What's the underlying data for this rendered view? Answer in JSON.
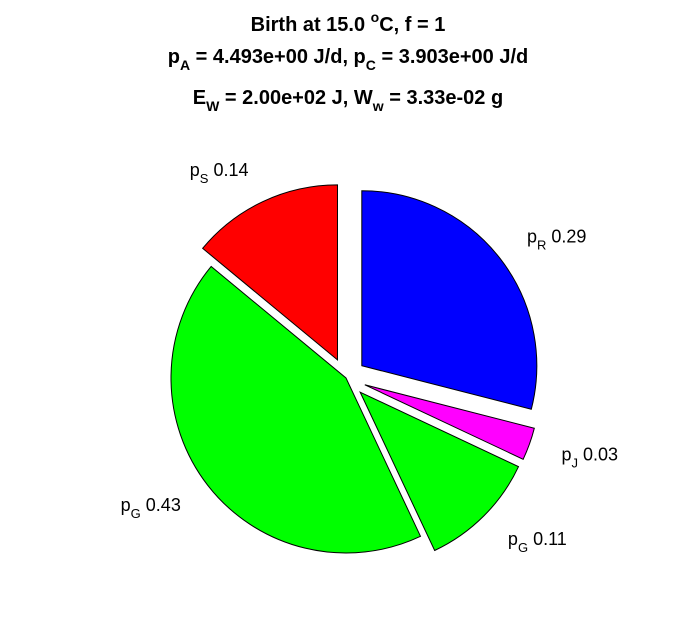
{
  "chart_data": {
    "type": "pie",
    "title_lines": [
      {
        "parts": [
          {
            "t": "Birth at 15.0 "
          },
          {
            "t": "o",
            "sup": true
          },
          {
            "t": "C, f = 1"
          }
        ]
      },
      {
        "parts": [
          {
            "t": "p"
          },
          {
            "t": "A",
            "sub": true
          },
          {
            "t": " = 4.493e+00 J/d, p"
          },
          {
            "t": "C",
            "sub": true
          },
          {
            "t": " = 3.903e+00 J/d"
          }
        ]
      },
      {
        "parts": [
          {
            "t": "E"
          },
          {
            "t": "W",
            "sub": true
          },
          {
            "t": " = 2.00e+02 J, W"
          },
          {
            "t": "w",
            "sub": true
          },
          {
            "t": " = 3.33e-02 g"
          }
        ]
      }
    ],
    "slices": [
      {
        "symbol": "p",
        "subscript": "R",
        "value_text": "0.29",
        "value": 0.29,
        "color": "#0000ff",
        "exploded": true
      },
      {
        "symbol": "p",
        "subscript": "J",
        "value_text": "0.03",
        "value": 0.03,
        "color": "#ff00ff",
        "exploded": true
      },
      {
        "symbol": "p",
        "subscript": "G",
        "value_text": "0.11",
        "value": 0.11,
        "color": "#00ff00",
        "exploded": true
      },
      {
        "symbol": "p",
        "subscript": "G",
        "value_text": "0.43",
        "value": 0.43,
        "color": "#00ff00",
        "exploded": false
      },
      {
        "symbol": "p",
        "subscript": "S",
        "value_text": "0.14",
        "value": 0.14,
        "color": "#ff0000",
        "exploded": true
      }
    ],
    "start": "12 o'clock",
    "direction": "clockwise"
  }
}
